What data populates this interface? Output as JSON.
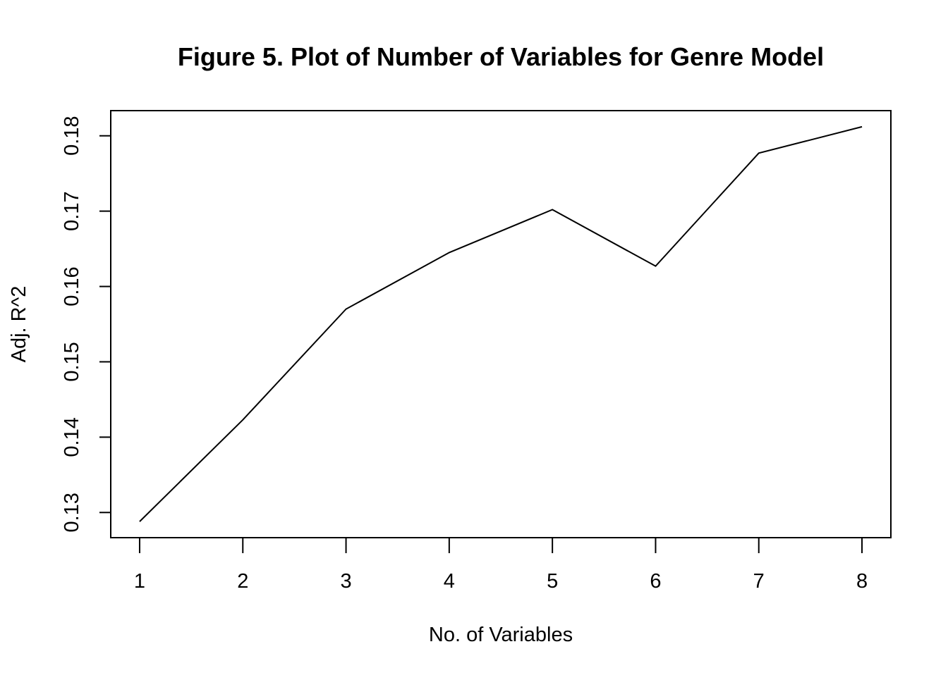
{
  "chart_data": {
    "type": "line",
    "title": "Figure 5. Plot of Number of Variables for Genre Model",
    "xlabel": "No. of Variables",
    "ylabel": "Adj. R^2",
    "x": [
      1,
      2,
      3,
      4,
      5,
      6,
      7,
      8
    ],
    "series": [
      {
        "values": [
          0.1288,
          0.1423,
          0.157,
          0.1645,
          0.1702,
          0.1627,
          0.1777,
          0.1812
        ]
      }
    ],
    "xticks": [
      "1",
      "2",
      "3",
      "4",
      "5",
      "6",
      "7",
      "8"
    ],
    "yticks": [
      "0.13",
      "0.14",
      "0.15",
      "0.16",
      "0.17",
      "0.18"
    ],
    "xlim": [
      0.72,
      8.28
    ],
    "ylim": [
      0.12666,
      0.18334
    ],
    "grid": false,
    "legend": "none",
    "line_color": "#000000"
  }
}
